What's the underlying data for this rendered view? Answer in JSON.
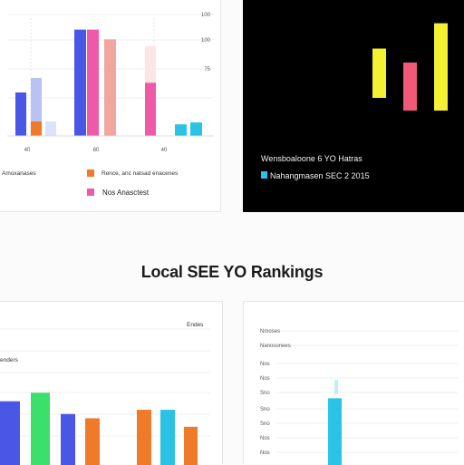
{
  "page_title": "Local SEE YO Rankings",
  "chart_data": [
    {
      "type": "bar",
      "categories": [
        "",
        "",
        "",
        "",
        "",
        "",
        "",
        "",
        "",
        "",
        "",
        ""
      ],
      "values": [
        45,
        60,
        15,
        110,
        110,
        100,
        93,
        55,
        12,
        15,
        14,
        0
      ],
      "colors": [
        "#4a57e6",
        "#b9c2f2",
        "#dde2fb",
        "#4a57e6",
        "#ee5aa8",
        "#f1a79d",
        "#fbe6e6",
        "#ee5aa8",
        "#2ac3e6",
        "#ef7a2a",
        "#2ac3e6",
        "#2ac3e6"
      ],
      "ylim": [
        0,
        120
      ],
      "y_ticks": [
        "100",
        "100",
        "75"
      ],
      "x_ticks": [
        "40",
        "60",
        "40"
      ],
      "legend": [
        {
          "label": "Amoxanases",
          "color": ""
        },
        {
          "label": "Rence, anc natsad enacenes",
          "color": "#ef7a2a"
        },
        {
          "label": "Nos Anasctest",
          "color": "#ee5aa8"
        }
      ],
      "grid": true
    },
    {
      "type": "bar",
      "categories": [
        "",
        "",
        ""
      ],
      "values": [
        70,
        55,
        100
      ],
      "colors": [
        "#f4f032",
        "#f05a78",
        "#f4f032"
      ],
      "ylim": [
        0,
        110
      ],
      "legend": [
        {
          "label": "Wensboaloone 6 YO Hatras",
          "color": ""
        },
        {
          "label": "Nahangmasen SEC 2 2015",
          "color": "#2ac3e6"
        }
      ],
      "background": "#000000"
    },
    {
      "type": "bar",
      "categories": [
        "",
        "",
        "",
        "",
        "",
        "",
        "",
        "",
        ""
      ],
      "values": [
        75,
        85,
        60,
        55,
        55,
        65,
        65,
        45,
        35
      ],
      "colors": [
        "#4a57e6",
        "#3be06a",
        "#4a57e6",
        "#ef7a2a",
        "#ef7a2a",
        "#ef7a2a",
        "#2ac3e6",
        "#ef7a2a",
        "#2ac3e6"
      ],
      "ylim": [
        0,
        160
      ],
      "labels": [
        "Endes",
        "enders"
      ],
      "grid": true
    },
    {
      "type": "bar",
      "categories": [
        ""
      ],
      "values": [
        60
      ],
      "colors": [
        "#2ac3e6"
      ],
      "ylim": [
        0,
        100
      ],
      "y_ticks": [
        "Nmoses",
        "Nanosonees",
        "Nos",
        "Nos",
        "Sno",
        "Sno",
        "Sno",
        "Nos",
        "Nos"
      ],
      "grid": true
    }
  ]
}
